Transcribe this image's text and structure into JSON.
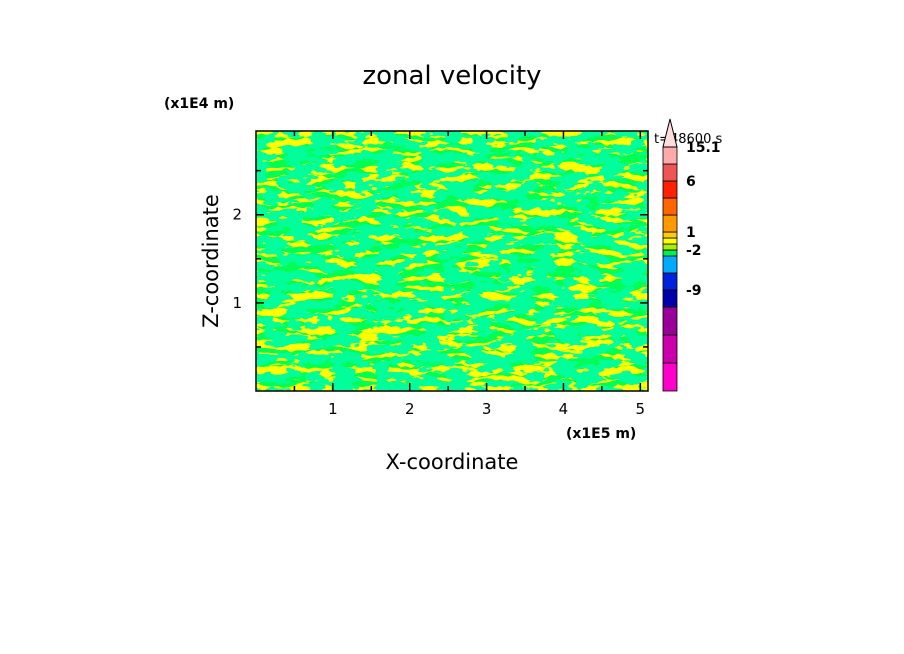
{
  "chart_data": {
    "type": "heatmap",
    "title": "zonal velocity",
    "xlabel": "X-coordinate",
    "ylabel": "Z-coordinate",
    "x_scale_label": "(x1E5 m)",
    "y_scale_label": "(x1E4 m)",
    "time_label": "t=48600 s",
    "xlim": [
      0,
      5.1
    ],
    "ylim": [
      0,
      2.95
    ],
    "x_ticks": [
      "1",
      "2",
      "3",
      "4",
      "5"
    ],
    "y_ticks": [
      "1",
      "2"
    ],
    "field_colors": [
      "#ffff00",
      "#00ff55"
    ],
    "colorbar": {
      "labels": [
        "15.1",
        "6",
        "1",
        "-2",
        "-9"
      ],
      "colors": [
        "#ff00cc",
        "#cc00aa",
        "#990099",
        "#0000aa",
        "#0022dd",
        "#00aaff",
        "#00ee55",
        "#aaee00",
        "#ffff00",
        "#ffcc00",
        "#ff9900",
        "#ff6600",
        "#ff2200",
        "#ee5555",
        "#ffaaaa"
      ],
      "arrow_color": "#ffdddd"
    }
  }
}
